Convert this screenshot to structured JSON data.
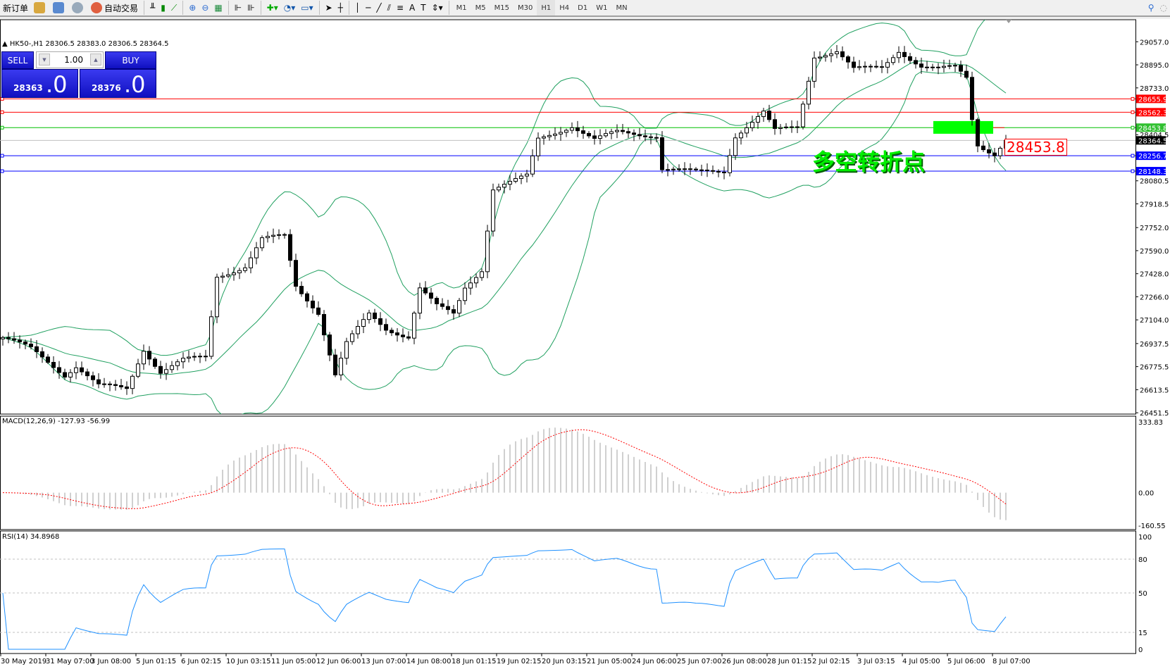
{
  "toolbar": {
    "new_order": "新订单",
    "auto_trading": "自动交易",
    "timeframes": [
      "M1",
      "M5",
      "M15",
      "M30",
      "H1",
      "H4",
      "D1",
      "W1",
      "MN"
    ],
    "active_timeframe": "H1"
  },
  "chart_info": "HK50-,H1  28306.5 28383.0 28306.5 28364.5",
  "trade_panel": {
    "sell_label": "SELL",
    "buy_label": "BUY",
    "lot": "1.00",
    "sell_price_main": "28363",
    "sell_price_big": ".0",
    "buy_price_main": "28376",
    "buy_price_big": ".0"
  },
  "annotation": {
    "text": "多空转折点",
    "price_label": "28453.8"
  },
  "price_axis": [
    "29057.0",
    "28895.0",
    "28733.0",
    "28404.5",
    "28080.5",
    "27918.5",
    "27752.0",
    "27590.0",
    "27428.0",
    "27266.0",
    "27104.0",
    "26937.5",
    "26775.5",
    "26613.5",
    "26451.5"
  ],
  "levels": [
    {
      "price": "28655.9",
      "color": "#ff0000"
    },
    {
      "price": "28562.3",
      "color": "#ff0000"
    },
    {
      "price": "28453.8",
      "color": "#00c000"
    },
    {
      "price": "28364.5",
      "color": "#000000"
    },
    {
      "price": "28256.7",
      "color": "#0000ff"
    },
    {
      "price": "28148.3",
      "color": "#0000ff"
    }
  ],
  "time_axis": [
    "30 May 2019",
    "31 May 07:00",
    "3 Jun 08:00",
    "5 Jun 01:15",
    "6 Jun 02:15",
    "10 Jun 03:15",
    "11 Jun 05:00",
    "12 Jun 06:00",
    "13 Jun 07:00",
    "14 Jun 08:00",
    "18 Jun 01:15",
    "19 Jun 02:15",
    "20 Jun 03:15",
    "21 Jun 05:00",
    "24 Jun 06:00",
    "25 Jun 07:00",
    "26 Jun 08:00",
    "28 Jun 01:15",
    "2 Jul 02:15",
    "3 Jul 03:15",
    "4 Jul 05:00",
    "5 Jul 06:00",
    "8 Jul 07:00"
  ],
  "macd": {
    "label": "MACD(12,26,9) -127.93 -56.99",
    "axis": [
      "333.83",
      "0.00",
      "-160.55"
    ]
  },
  "rsi": {
    "label": "RSI(14) 34.8968",
    "axis": [
      "100",
      "80",
      "50",
      "15",
      "0"
    ]
  },
  "colors": {
    "bands": "#20a060",
    "macd_signal": "#ff0000",
    "macd_hist": "#c0c0c0",
    "rsi": "#1e90ff"
  },
  "chart_data": {
    "type": "candlestick",
    "symbol": "HK50-",
    "timeframe": "H1",
    "ylim": [
      26451.5,
      29057.0
    ],
    "price_path": [
      [
        0,
        26980
      ],
      [
        5,
        26900
      ],
      [
        11,
        26720
      ],
      [
        13,
        26780
      ],
      [
        17,
        26640
      ],
      [
        22,
        26620
      ],
      [
        25,
        26900
      ],
      [
        28,
        26740
      ],
      [
        32,
        26820
      ],
      [
        36,
        26840
      ],
      [
        38,
        27410
      ],
      [
        43,
        27480
      ],
      [
        46,
        27670
      ],
      [
        50,
        27690
      ],
      [
        52,
        27340
      ],
      [
        56,
        27160
      ],
      [
        59,
        26720
      ],
      [
        61,
        26940
      ],
      [
        65,
        27140
      ],
      [
        68,
        27040
      ],
      [
        72,
        26990
      ],
      [
        74,
        27330
      ],
      [
        77,
        27200
      ],
      [
        80,
        27140
      ],
      [
        82,
        27330
      ],
      [
        85,
        27460
      ],
      [
        87,
        28030
      ],
      [
        93,
        28110
      ],
      [
        95,
        28370
      ],
      [
        101,
        28470
      ],
      [
        105,
        28370
      ],
      [
        109,
        28420
      ],
      [
        116,
        28400
      ],
      [
        117,
        28170
      ],
      [
        123,
        28140
      ],
      [
        128,
        28150
      ],
      [
        130,
        28400
      ],
      [
        135,
        28560
      ],
      [
        137,
        28430
      ],
      [
        141,
        28460
      ],
      [
        144,
        28960
      ],
      [
        148,
        28990
      ],
      [
        151,
        28860
      ],
      [
        156,
        28880
      ],
      [
        159,
        29000
      ],
      [
        163,
        28880
      ],
      [
        166,
        28860
      ],
      [
        169,
        28880
      ],
      [
        171,
        28810
      ],
      [
        172,
        28520
      ],
      [
        173,
        28340
      ],
      [
        176,
        28270
      ],
      [
        178,
        28364.5
      ]
    ],
    "indicators": [
      "Bollinger Bands(20,2)",
      "MACD(12,26,9)",
      "RSI(14)"
    ]
  }
}
